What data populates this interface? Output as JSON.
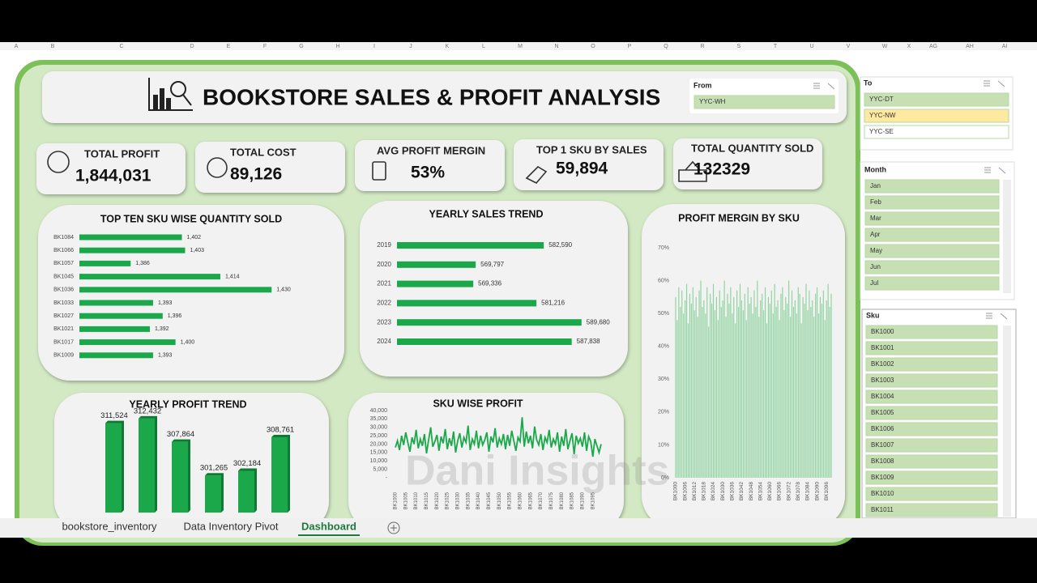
{
  "column_headers": [
    "A",
    "B",
    "C",
    "D",
    "E",
    "F",
    "G",
    "H",
    "I",
    "J",
    "K",
    "L",
    "M",
    "N",
    "O",
    "P",
    "Q",
    "R",
    "S",
    "T",
    "U",
    "V",
    "W",
    "X",
    "AG",
    "AH",
    "AI"
  ],
  "header": {
    "title": "BOOKSTORE SALES & PROFIT ANALYSIS"
  },
  "kpis": [
    {
      "label": "TOTAL PROFIT",
      "value": "1,844,031"
    },
    {
      "label": "TOTAL COST",
      "value": "89,126"
    },
    {
      "label": "AVG PROFIT MERGIN",
      "value": "53%"
    },
    {
      "label": "TOP 1 SKU BY SALES",
      "value": "59,894"
    },
    {
      "label": "TOTAL QUANTITY SOLD",
      "value": "132329"
    }
  ],
  "slicers": {
    "from": {
      "title": "From",
      "items": [
        "YYC-WH"
      ]
    },
    "to": {
      "title": "To",
      "items": [
        "YYC-DT",
        "YYC-NW",
        "YYC-SE"
      ]
    },
    "month": {
      "title": "Month",
      "items": [
        "Jan",
        "Feb",
        "Mar",
        "Apr",
        "May",
        "Jun",
        "Jul"
      ]
    },
    "sku": {
      "title": "Sku",
      "items": [
        "BK1000",
        "BK1001",
        "BK1002",
        "BK1003",
        "BK1004",
        "BK1005",
        "BK1006",
        "BK1007",
        "BK1008",
        "BK1009",
        "BK1010",
        "BK1011"
      ]
    }
  },
  "watermark": "Dani Insights",
  "sheet_tabs": [
    "bookstore_inventory",
    "Data Inventory Pivot",
    "Dashboard"
  ],
  "chart_data": [
    {
      "type": "hbar",
      "title": "TOP TEN SKU WISE QUANTITY SOLD",
      "color": "#1aa84a",
      "categories": [
        "BK1084",
        "BK1066",
        "BK1057",
        "BK1045",
        "BK1036",
        "BK1033",
        "BK1027",
        "BK1021",
        "BK1017",
        "BK1009"
      ],
      "values": [
        1402,
        1403,
        1386,
        1414,
        1430,
        1393,
        1396,
        1392,
        1400,
        1393
      ],
      "value_labels": [
        "1,402",
        "1,403",
        "1,386",
        "1,414",
        "1,430",
        "1,393",
        "1,396",
        "1,392",
        "1,400",
        "1,393"
      ],
      "xlim": [
        1370,
        1435
      ]
    },
    {
      "type": "hbar",
      "title": "YEARLY SALES TREND",
      "color": "#1aa84a",
      "categories": [
        "2019",
        "2020",
        "2021",
        "2022",
        "2023",
        "2024"
      ],
      "values": [
        582590,
        569797,
        569336,
        581216,
        589680,
        587838
      ],
      "value_labels": [
        "582,590",
        "569,797",
        "569,336",
        "581,216",
        "589,680",
        "587,838"
      ],
      "xlim": [
        555000,
        592000
      ]
    },
    {
      "type": "column",
      "title": "PROFIT MERGIN BY SKU",
      "color": "#8fd3a0",
      "categories": [
        "BK1000",
        null,
        null,
        null,
        null,
        null,
        "BK1006",
        null,
        null,
        null,
        null,
        null,
        "BK1012",
        null,
        null,
        null,
        null,
        null,
        "BK1018",
        null,
        null,
        null,
        null,
        null,
        "BK1024",
        null,
        null,
        null,
        null,
        null,
        "BK1030",
        null,
        null,
        null,
        null,
        null,
        "BK1036",
        null,
        null,
        null,
        null,
        null,
        "BK1042",
        null,
        null,
        null,
        null,
        null,
        "BK1048",
        null,
        null,
        null,
        null,
        null,
        "BK1054",
        null,
        null,
        null,
        null,
        null,
        "BK1060",
        null,
        null,
        null,
        null,
        null,
        "BK1066",
        null,
        null,
        null,
        null,
        null,
        "BK1072",
        null,
        null,
        null,
        null,
        null,
        "BK1078",
        null,
        null,
        null,
        null,
        null,
        "BK1084",
        null,
        null,
        null,
        null,
        null,
        "BK1090",
        null,
        null,
        null,
        null,
        null,
        "BK1096",
        null,
        null,
        null
      ],
      "values": [
        55,
        48,
        58,
        52,
        57,
        50,
        54,
        59,
        47,
        56,
        53,
        58,
        51,
        55,
        49,
        57,
        60,
        52,
        54,
        50,
        58,
        46,
        56,
        53,
        59,
        51,
        55,
        48,
        57,
        52,
        54,
        60,
        49,
        56,
        53,
        58,
        50,
        55,
        47,
        57,
        52,
        59,
        54,
        51,
        56,
        48,
        58,
        53,
        55,
        50,
        57,
        52,
        60,
        49,
        54,
        56,
        51,
        58,
        47,
        55,
        53,
        57,
        50,
        59,
        52,
        54,
        48,
        56,
        58,
        51,
        55,
        53,
        60,
        49,
        57,
        52,
        54,
        50,
        58,
        56,
        47,
        55,
        53,
        59,
        51,
        57,
        52,
        54,
        49,
        56,
        58,
        50,
        55,
        53,
        57,
        48,
        54,
        59,
        52,
        56
      ],
      "ylim": [
        0,
        70
      ],
      "yticks": [
        {
          "value": 0,
          "label": "0%"
        },
        {
          "value": 10,
          "label": "10%"
        },
        {
          "value": 20,
          "label": "20%"
        },
        {
          "value": 30,
          "label": "30%"
        },
        {
          "value": 40,
          "label": "40%"
        },
        {
          "value": 50,
          "label": "50%"
        },
        {
          "value": 60,
          "label": "60%"
        },
        {
          "value": 70,
          "label": "70%"
        }
      ]
    },
    {
      "type": "column3d",
      "title": "YEARLY PROFIT TREND",
      "color": "#1aa84a",
      "values": [
        311524,
        312432,
        307864,
        301265,
        302184,
        308761
      ],
      "value_labels": [
        "311,524",
        "312,432",
        "307,864",
        "301,265",
        "302,184",
        "308,761"
      ],
      "ylim": [
        294000,
        314000
      ]
    },
    {
      "type": "line",
      "title": "SKU WISE PROFIT",
      "color": "#1aa84a",
      "categories": [
        "BK1000",
        null,
        null,
        null,
        null,
        "BK1005",
        null,
        null,
        null,
        null,
        "BK1010",
        null,
        null,
        null,
        null,
        "BK1015",
        null,
        null,
        null,
        null,
        "BK1020",
        null,
        null,
        null,
        null,
        "BK1025",
        null,
        null,
        null,
        null,
        "BK1030",
        null,
        null,
        null,
        null,
        "BK1035",
        null,
        null,
        null,
        null,
        "BK1040",
        null,
        null,
        null,
        null,
        "BK1045",
        null,
        null,
        null,
        null,
        "BK1050",
        null,
        null,
        null,
        null,
        "BK1055",
        null,
        null,
        null,
        null,
        "BK1060",
        null,
        null,
        null,
        null,
        "BK1065",
        null,
        null,
        null,
        null,
        "BK1070",
        null,
        null,
        null,
        null,
        "BK1075",
        null,
        null,
        null,
        null,
        "BK1080",
        null,
        null,
        null,
        null,
        "BK1085",
        null,
        null,
        null,
        null,
        "BK1090",
        null,
        null,
        null,
        null,
        "BK1095",
        null,
        null,
        null,
        null
      ],
      "values": [
        18000,
        22000,
        16500,
        25000,
        19500,
        27000,
        21000,
        15500,
        24000,
        20000,
        28500,
        17500,
        23000,
        19000,
        26000,
        14500,
        22500,
        30000,
        18500,
        21500,
        25500,
        16000,
        24500,
        20500,
        29000,
        17000,
        23500,
        19000,
        27500,
        15000,
        22000,
        26500,
        18000,
        24000,
        21000,
        31000,
        16500,
        23000,
        20000,
        28000,
        17500,
        25000,
        19500,
        22500,
        27000,
        15500,
        24500,
        21000,
        29500,
        18000,
        23500,
        20000,
        26000,
        17000,
        25500,
        19000,
        28000,
        22000,
        16000,
        24000,
        21500,
        36000,
        18500,
        27500,
        20500,
        25000,
        17500,
        30500,
        22500,
        19500,
        26000,
        16500,
        24000,
        21000,
        28500,
        18000,
        23000,
        20000,
        27000,
        15500,
        24500,
        19000,
        29000,
        17000,
        22000,
        26500,
        14000,
        25000,
        20500,
        23500,
        18500,
        27000,
        16000,
        24500,
        21500,
        12500,
        23000,
        19000,
        15000,
        20000
      ],
      "ylim": [
        0,
        40000
      ],
      "yticks": [
        {
          "value": 0,
          "label": "-"
        },
        {
          "value": 5000,
          "label": "5,000"
        },
        {
          "value": 10000,
          "label": "10,000"
        },
        {
          "value": 15000,
          "label": "15,000"
        },
        {
          "value": 20000,
          "label": "20,000"
        },
        {
          "value": 25000,
          "label": "25,000"
        },
        {
          "value": 30000,
          "label": "30,000"
        },
        {
          "value": 35000,
          "label": "35,000"
        },
        {
          "value": 40000,
          "label": "40,000"
        }
      ]
    }
  ]
}
